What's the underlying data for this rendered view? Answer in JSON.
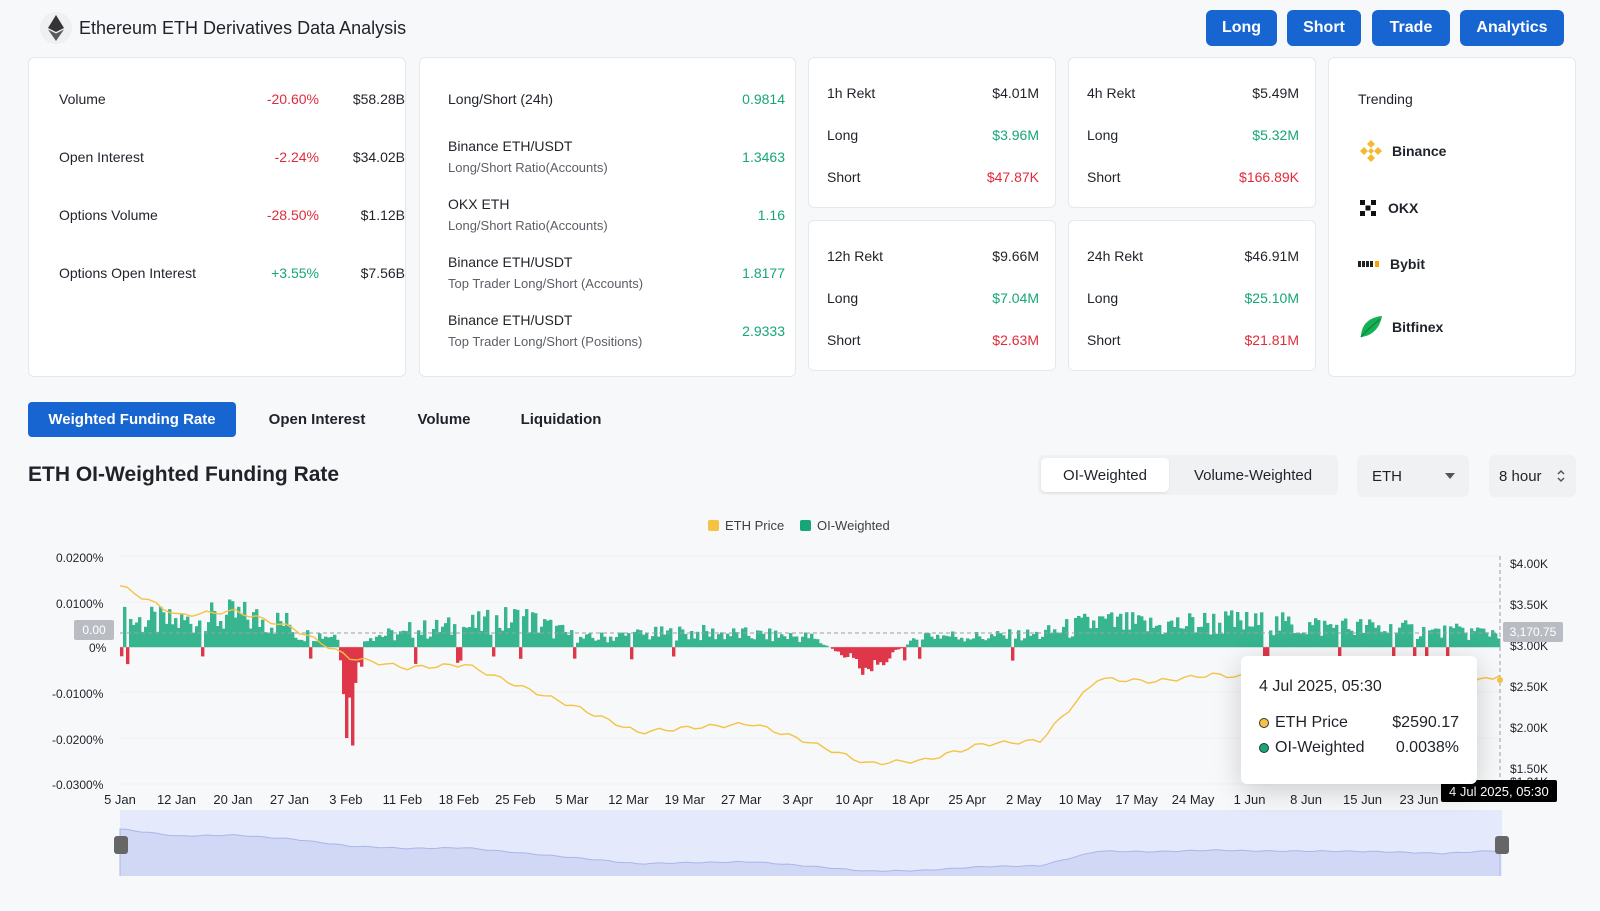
{
  "header": {
    "title": "Ethereum ETH Derivatives Data Analysis",
    "buttons": {
      "long": "Long",
      "short": "Short",
      "trade": "Trade",
      "analytics": "Analytics"
    }
  },
  "overview": [
    {
      "label": "Volume",
      "change": "-20.60%",
      "value": "$58.28B"
    },
    {
      "label": "Open Interest",
      "change": "-2.24%",
      "value": "$34.02B"
    },
    {
      "label": "Options Volume",
      "change": "-28.50%",
      "value": "$1.12B"
    },
    {
      "label": "Options Open Interest",
      "change": "+3.55%",
      "value": "$7.56B"
    }
  ],
  "ratios": [
    {
      "label": "Long/Short (24h)",
      "sub": "",
      "value": "0.9814"
    },
    {
      "label": "Binance ETH/USDT",
      "sub": "Long/Short Ratio(Accounts)",
      "value": "1.3463"
    },
    {
      "label": "OKX ETH",
      "sub": "Long/Short Ratio(Accounts)",
      "value": "1.16"
    },
    {
      "label": "Binance ETH/USDT",
      "sub": "Top Trader Long/Short (Accounts)",
      "value": "1.8177"
    },
    {
      "label": "Binance ETH/USDT",
      "sub": "Top Trader Long/Short (Positions)",
      "value": "2.9333"
    }
  ],
  "rekt": [
    {
      "label": "1h Rekt",
      "total": "$4.01M",
      "long_label": "Long",
      "long": "$3.96M",
      "short_label": "Short",
      "short": "$47.87K"
    },
    {
      "label": "4h Rekt",
      "total": "$5.49M",
      "long_label": "Long",
      "long": "$5.32M",
      "short_label": "Short",
      "short": "$166.89K"
    },
    {
      "label": "12h Rekt",
      "total": "$9.66M",
      "long_label": "Long",
      "long": "$7.04M",
      "short_label": "Short",
      "short": "$2.63M"
    },
    {
      "label": "24h Rekt",
      "total": "$46.91M",
      "long_label": "Long",
      "long": "$25.10M",
      "short_label": "Short",
      "short": "$21.81M"
    }
  ],
  "trending": {
    "title": "Trending",
    "items": [
      {
        "name": "Binance",
        "icon": "binance-icon"
      },
      {
        "name": "OKX",
        "icon": "okx-icon"
      },
      {
        "name": "Bybit",
        "icon": "bybit-icon"
      },
      {
        "name": "Bitfinex",
        "icon": "bitfinex-icon"
      }
    ]
  },
  "tabs": [
    "Weighted Funding Rate",
    "Open Interest",
    "Volume",
    "Liquidation"
  ],
  "chart_section": {
    "title": "ETH OI-Weighted Funding Rate",
    "segments": [
      "OI-Weighted",
      "Volume-Weighted"
    ],
    "coin_select": "ETH",
    "interval_select": "8 hour",
    "crosshair_x": "4 Jul 2025, 05:30",
    "crosshair_left": "0.00",
    "crosshair_right": "3,170.75",
    "tooltip": {
      "date": "4 Jul 2025, 05:30",
      "price_label": "ETH Price",
      "price_value": "$2590.17",
      "rate_label": "OI-Weighted",
      "rate_value": "0.0038%"
    }
  },
  "colors": {
    "accent": "#1765d1",
    "positive": "#16a67a",
    "negative": "#e02b3b",
    "funding_pos": "#36b58f",
    "funding_neg": "#e0364a",
    "price_line": "#f5c244"
  },
  "chart_data": {
    "type": "area",
    "legend": [
      "ETH Price",
      "OI-Weighted"
    ],
    "legend_position": "top-center",
    "y_left_ticks": [
      "0.0200%",
      "0.0100%",
      "0%",
      "-0.0100%",
      "-0.0200%",
      "-0.0300%"
    ],
    "y_right_ticks": [
      "$4.00K",
      "$3.50K",
      "$3.00K",
      "$2.50K",
      "$2.00K",
      "$1.50K",
      "$1.31K"
    ],
    "x_ticks": [
      "5 Jan",
      "12 Jan",
      "20 Jan",
      "27 Jan",
      "3 Feb",
      "11 Feb",
      "18 Feb",
      "25 Feb",
      "5 Mar",
      "12 Mar",
      "19 Mar",
      "27 Mar",
      "3 Apr",
      "10 Apr",
      "18 Apr",
      "25 Apr",
      "2 May",
      "10 May",
      "17 May",
      "24 May",
      "1 Jun",
      "8 Jun",
      "15 Jun",
      "23 Jun"
    ],
    "ylim_left": [
      -0.03,
      0.02
    ],
    "ylim_right": [
      1310,
      4000
    ],
    "series": [
      {
        "name": "ETH Price",
        "x": [
          "5 Jan",
          "12 Jan",
          "20 Jan",
          "27 Jan",
          "3 Feb",
          "11 Feb",
          "18 Feb",
          "25 Feb",
          "5 Mar",
          "12 Mar",
          "19 Mar",
          "27 Mar",
          "3 Apr",
          "10 Apr",
          "18 Apr",
          "25 Apr",
          "2 May",
          "10 May",
          "17 May",
          "24 May",
          "1 Jun",
          "8 Jun",
          "15 Jun",
          "23 Jun",
          "4 Jul"
        ],
        "values": [
          3650,
          3300,
          3350,
          3150,
          2800,
          2680,
          2720,
          2450,
          2200,
          1920,
          1980,
          2020,
          1800,
          1550,
          1590,
          1780,
          1820,
          2550,
          2520,
          2600,
          2550,
          2550,
          2520,
          2430,
          2590
        ]
      },
      {
        "name": "OI-Weighted",
        "x": [
          "5 Jan",
          "12 Jan",
          "20 Jan",
          "27 Jan",
          "3 Feb",
          "11 Feb",
          "18 Feb",
          "25 Feb",
          "5 Mar",
          "12 Mar",
          "19 Mar",
          "27 Mar",
          "3 Apr",
          "10 Apr",
          "18 Apr",
          "25 Apr",
          "2 May",
          "10 May",
          "17 May",
          "24 May",
          "1 Jun",
          "8 Jun",
          "15 Jun",
          "23 Jun",
          "4 Jul"
        ],
        "values": [
          0.0065,
          0.006,
          0.0075,
          0.0055,
          -0.022,
          0.004,
          0.005,
          0.007,
          0.002,
          0.003,
          0.0035,
          0.003,
          0.0025,
          -0.005,
          0.003,
          0.0025,
          0.003,
          0.006,
          0.005,
          0.006,
          0.0055,
          0.005,
          0.0045,
          0.0035,
          0.0038
        ]
      }
    ]
  }
}
